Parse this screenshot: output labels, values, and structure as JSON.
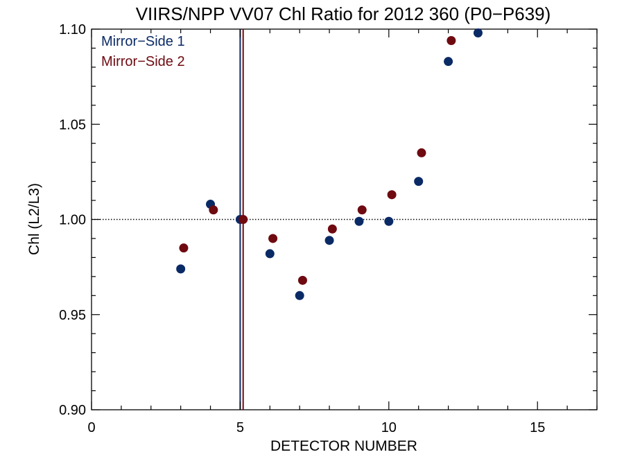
{
  "chart_data": {
    "type": "scatter",
    "title": "VIIRS/NPP VV07 Chl Ratio for 2012 360 (P0−P639)",
    "xlabel": "DETECTOR NUMBER",
    "ylabel": "Chl (L2/L3)",
    "xlim": [
      0,
      17
    ],
    "ylim": [
      0.9,
      1.1
    ],
    "x_ticks": [
      0,
      5,
      10,
      15
    ],
    "x_tick_labels": [
      "0",
      "5",
      "10",
      "15"
    ],
    "y_ticks": [
      0.9,
      0.95,
      1.0,
      1.05,
      1.1
    ],
    "y_tick_labels": [
      "0.90",
      "0.95",
      "1.00",
      "1.05",
      "1.10"
    ],
    "reference_line": {
      "y": 1.0,
      "style": "dotted"
    },
    "vertical_lines": [
      {
        "x": 5.0,
        "color": "#0a2a66"
      },
      {
        "x": 5.1,
        "color": "#6e0a10"
      }
    ],
    "legend_position": "top-left",
    "series": [
      {
        "name": "Mirror−Side 1",
        "color": "#0a2a66",
        "x": [
          3,
          4,
          5,
          6,
          7,
          8,
          9,
          10,
          11,
          12,
          13
        ],
        "y": [
          0.974,
          1.008,
          1.0,
          0.982,
          0.96,
          0.989,
          0.999,
          0.999,
          1.02,
          1.083,
          1.098
        ]
      },
      {
        "name": "Mirror−Side 2",
        "color": "#6e0a10",
        "x": [
          3.1,
          4.1,
          5.1,
          6.1,
          7.1,
          8.1,
          9.1,
          10.1,
          11.1,
          12.1
        ],
        "y": [
          0.985,
          1.005,
          1.0,
          0.99,
          0.968,
          0.995,
          1.005,
          1.013,
          1.035,
          1.094
        ]
      }
    ]
  }
}
